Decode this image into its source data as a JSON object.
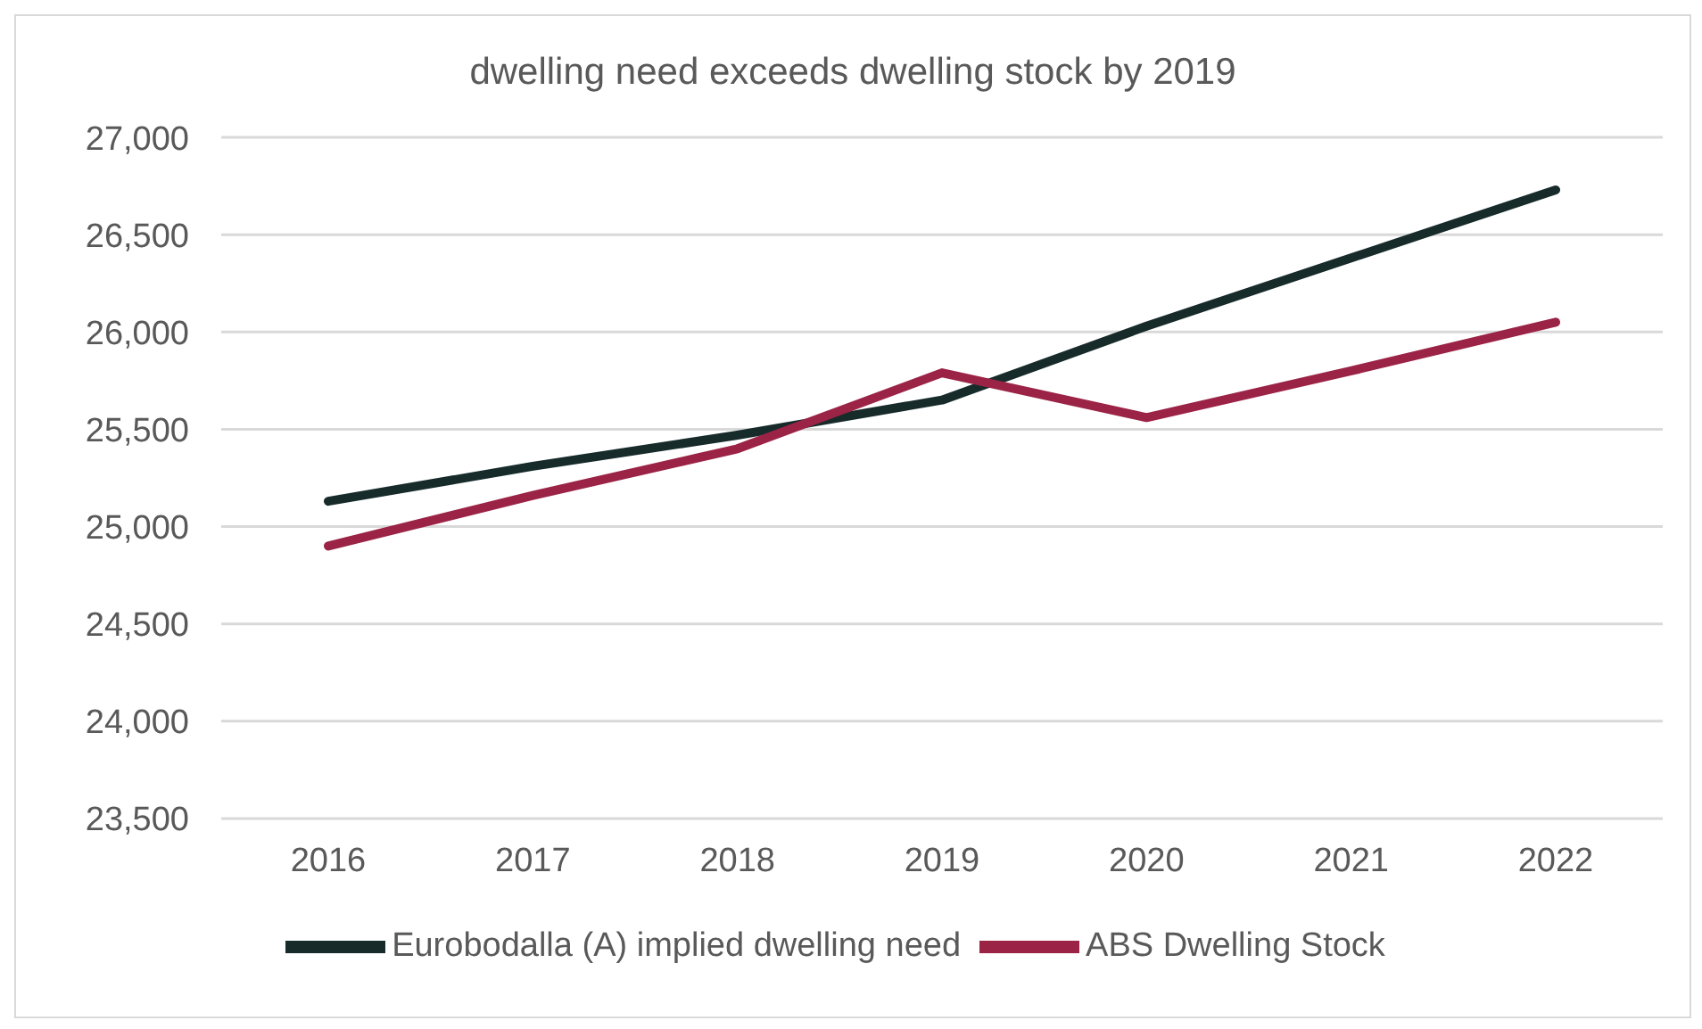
{
  "chart_data": {
    "type": "line",
    "title": "dwelling need exceeds dwelling stock by 2019",
    "categories": [
      "2016",
      "2017",
      "2018",
      "2019",
      "2020",
      "2021",
      "2022"
    ],
    "series": [
      {
        "name": "Eurobodalla (A) implied dwelling need",
        "color": "#172b2b",
        "values": [
          25130,
          25310,
          25470,
          25650,
          26030,
          26380,
          26730
        ]
      },
      {
        "name": "ABS Dwelling Stock",
        "color": "#9b2346",
        "values": [
          24900,
          25160,
          25400,
          25790,
          25560,
          25800,
          26050
        ]
      }
    ],
    "ylim": [
      23500,
      27000
    ],
    "yticks": [
      {
        "value": 23500,
        "label": "23,500"
      },
      {
        "value": 24000,
        "label": "24,000"
      },
      {
        "value": 24500,
        "label": "24,500"
      },
      {
        "value": 25000,
        "label": "25,000"
      },
      {
        "value": 25500,
        "label": "25,500"
      },
      {
        "value": 26000,
        "label": "26,000"
      },
      {
        "value": 26500,
        "label": "26,500"
      },
      {
        "value": 27000,
        "label": "27,000"
      }
    ],
    "grid": "y",
    "legend": "bottom",
    "marker": "none",
    "line_style": "solid"
  }
}
